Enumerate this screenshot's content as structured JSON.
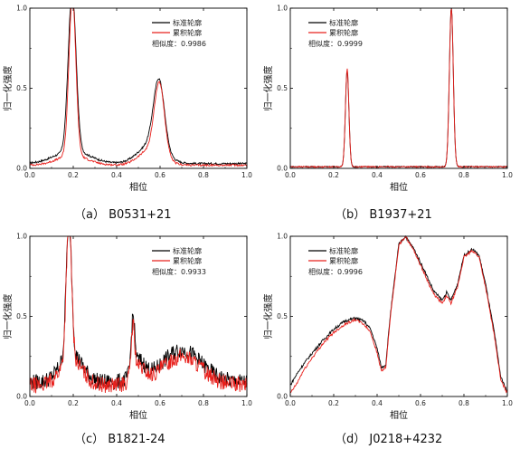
{
  "chart_data": [
    {
      "type": "line",
      "caption": "（a） B0531+21",
      "xlabel": "相位",
      "ylabel": "归一化强度",
      "xlim": [
        0.0,
        1.0
      ],
      "ylim": [
        0.0,
        1.0
      ],
      "xticks": [
        "0.0",
        "0.2",
        "0.4",
        "0.6",
        "0.8",
        "1.0"
      ],
      "yticks": [
        "0.0",
        "0.5",
        "1.0"
      ],
      "legend_position": "top-right",
      "similarity": "相似度：0.9986",
      "noise": 0.006,
      "series": [
        {
          "name": "标准轮廓",
          "color": "#000000",
          "base": 0.03,
          "offset": 0.0,
          "peaks": [
            [
              0.195,
              1.0,
              0.018
            ],
            [
              0.195,
              0.08,
              0.08
            ],
            [
              0.595,
              0.43,
              0.025
            ],
            [
              0.56,
              0.12,
              0.06
            ]
          ]
        },
        {
          "name": "累积轮廓",
          "color": "#e8201c",
          "base": 0.02,
          "offset": 0.0,
          "peaks": [
            [
              0.196,
              0.99,
              0.016
            ],
            [
              0.196,
              0.06,
              0.07
            ],
            [
              0.597,
              0.44,
              0.023
            ],
            [
              0.56,
              0.1,
              0.055
            ]
          ]
        }
      ]
    },
    {
      "type": "line",
      "caption": "（b） B1937+21",
      "xlabel": "相位",
      "ylabel": "归一化强度",
      "xlim": [
        0.0,
        1.0
      ],
      "ylim": [
        0.0,
        1.0
      ],
      "xticks": [
        "0.0",
        "0.2",
        "0.4",
        "0.6",
        "0.8",
        "1.0"
      ],
      "yticks": [
        "0.0",
        "0.5",
        "1.0"
      ],
      "legend_position": "top-left",
      "similarity": "相似度：0.9999",
      "noise": 0.004,
      "series": [
        {
          "name": "标准轮廓",
          "color": "#000000",
          "base": 0.01,
          "offset": 0.0,
          "peaks": [
            [
              0.262,
              0.6,
              0.008
            ],
            [
              0.742,
              1.0,
              0.009
            ]
          ]
        },
        {
          "name": "累积轮廓",
          "color": "#e8201c",
          "base": 0.01,
          "offset": 0.0,
          "peaks": [
            [
              0.262,
              0.61,
              0.008
            ],
            [
              0.742,
              0.99,
              0.009
            ]
          ]
        }
      ]
    },
    {
      "type": "line",
      "caption": "（c） B1821-24",
      "xlabel": "相位",
      "ylabel": "归一化强度",
      "xlim": [
        0.0,
        1.0
      ],
      "ylim": [
        0.0,
        1.0
      ],
      "xticks": [
        "0.0",
        "0.2",
        "0.4",
        "0.6",
        "0.8",
        "1.0"
      ],
      "yticks": [
        "0.0",
        "0.5",
        "1.0"
      ],
      "legend_position": "top-right",
      "similarity": "相似度：0.9933",
      "noise": 0.05,
      "series": [
        {
          "name": "标准轮廓",
          "color": "#000000",
          "base": 0.09,
          "offset": 0.0,
          "peaks": [
            [
              0.18,
              0.88,
              0.012
            ],
            [
              0.19,
              0.18,
              0.05
            ],
            [
              0.475,
              0.32,
              0.008
            ],
            [
              0.5,
              0.12,
              0.03
            ],
            [
              0.7,
              0.2,
              0.09
            ]
          ]
        },
        {
          "name": "累积轮廓",
          "color": "#e8201c",
          "base": 0.07,
          "offset": 0.0,
          "peaks": [
            [
              0.18,
              0.9,
              0.012
            ],
            [
              0.19,
              0.16,
              0.05
            ],
            [
              0.475,
              0.3,
              0.008
            ],
            [
              0.5,
              0.1,
              0.03
            ],
            [
              0.7,
              0.18,
              0.09
            ]
          ]
        }
      ]
    },
    {
      "type": "line",
      "caption": "（d） J0218+4232",
      "xlabel": "相位",
      "ylabel": "归一化强度",
      "xlim": [
        0.0,
        1.0
      ],
      "ylim": [
        0.0,
        1.0
      ],
      "xticks": [
        "0.0",
        "0.2",
        "0.4",
        "0.6",
        "0.8",
        "1.0"
      ],
      "yticks": [
        "0.0",
        "0.5",
        "1.0"
      ],
      "legend_position": "top-left",
      "similarity": "相似度：0.9996",
      "noise": 0.008,
      "series": [
        {
          "name": "标准轮廓",
          "color": "#000000",
          "base": 0.0,
          "offset": 0.0,
          "points": [
            [
              0.0,
              0.07
            ],
            [
              0.03,
              0.14
            ],
            [
              0.06,
              0.2
            ],
            [
              0.1,
              0.27
            ],
            [
              0.15,
              0.35
            ],
            [
              0.2,
              0.42
            ],
            [
              0.25,
              0.47
            ],
            [
              0.3,
              0.49
            ],
            [
              0.34,
              0.47
            ],
            [
              0.37,
              0.42
            ],
            [
              0.4,
              0.3
            ],
            [
              0.42,
              0.18
            ],
            [
              0.44,
              0.2
            ],
            [
              0.46,
              0.5
            ],
            [
              0.5,
              0.95
            ],
            [
              0.53,
              1.0
            ],
            [
              0.57,
              0.92
            ],
            [
              0.62,
              0.78
            ],
            [
              0.66,
              0.66
            ],
            [
              0.7,
              0.6
            ],
            [
              0.72,
              0.65
            ],
            [
              0.74,
              0.6
            ],
            [
              0.77,
              0.7
            ],
            [
              0.8,
              0.88
            ],
            [
              0.84,
              0.92
            ],
            [
              0.87,
              0.88
            ],
            [
              0.9,
              0.7
            ],
            [
              0.94,
              0.4
            ],
            [
              0.97,
              0.12
            ],
            [
              1.0,
              0.03
            ]
          ]
        },
        {
          "name": "累积轮廓",
          "color": "#e8201c",
          "base": 0.0,
          "offset": 0.0,
          "points": [
            [
              0.0,
              0.02
            ],
            [
              0.03,
              0.08
            ],
            [
              0.06,
              0.16
            ],
            [
              0.1,
              0.24
            ],
            [
              0.15,
              0.33
            ],
            [
              0.2,
              0.4
            ],
            [
              0.25,
              0.45
            ],
            [
              0.3,
              0.48
            ],
            [
              0.34,
              0.45
            ],
            [
              0.37,
              0.4
            ],
            [
              0.4,
              0.27
            ],
            [
              0.42,
              0.16
            ],
            [
              0.44,
              0.18
            ],
            [
              0.46,
              0.48
            ],
            [
              0.5,
              0.94
            ],
            [
              0.53,
              1.0
            ],
            [
              0.57,
              0.91
            ],
            [
              0.62,
              0.76
            ],
            [
              0.66,
              0.64
            ],
            [
              0.7,
              0.58
            ],
            [
              0.72,
              0.63
            ],
            [
              0.74,
              0.58
            ],
            [
              0.77,
              0.68
            ],
            [
              0.8,
              0.87
            ],
            [
              0.84,
              0.91
            ],
            [
              0.87,
              0.87
            ],
            [
              0.9,
              0.68
            ],
            [
              0.94,
              0.38
            ],
            [
              0.97,
              0.1
            ],
            [
              1.0,
              0.02
            ]
          ]
        }
      ]
    }
  ]
}
